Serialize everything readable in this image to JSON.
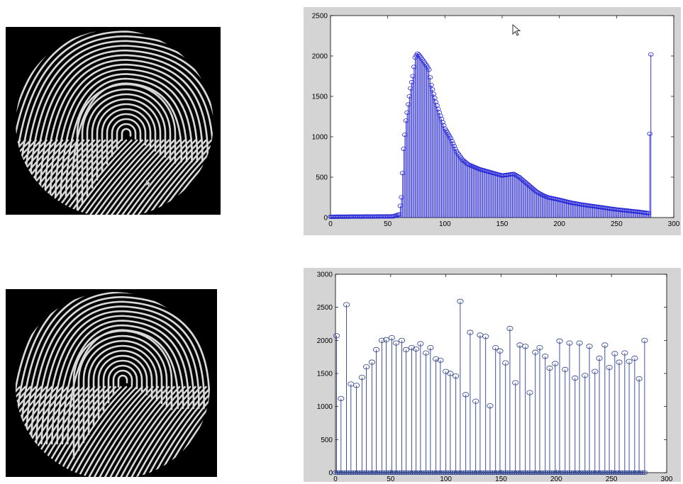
{
  "chart_data": [
    {
      "type": "stem",
      "title": "",
      "xlabel": "",
      "ylabel": "",
      "xlim": [
        0,
        300
      ],
      "ylim": [
        0,
        2500
      ],
      "xticks": [
        0,
        50,
        100,
        150,
        200,
        250,
        300
      ],
      "yticks": [
        0,
        500,
        1000,
        1500,
        2000,
        2500
      ],
      "grid": false,
      "color": "#2424d8",
      "keypoints": [
        [
          0,
          10
        ],
        [
          55,
          15
        ],
        [
          60,
          40
        ],
        [
          62,
          250
        ],
        [
          64,
          850
        ],
        [
          66,
          1200
        ],
        [
          68,
          1400
        ],
        [
          70,
          1600
        ],
        [
          72,
          1750
        ],
        [
          74,
          1980
        ],
        [
          76,
          2030
        ],
        [
          78,
          2000
        ],
        [
          80,
          1960
        ],
        [
          82,
          1920
        ],
        [
          84,
          1880
        ],
        [
          86,
          1830
        ],
        [
          88,
          1640
        ],
        [
          90,
          1530
        ],
        [
          92,
          1430
        ],
        [
          95,
          1300
        ],
        [
          100,
          1100
        ],
        [
          105,
          980
        ],
        [
          110,
          820
        ],
        [
          115,
          720
        ],
        [
          120,
          660
        ],
        [
          125,
          630
        ],
        [
          130,
          600
        ],
        [
          135,
          580
        ],
        [
          140,
          560
        ],
        [
          145,
          540
        ],
        [
          150,
          520
        ],
        [
          155,
          530
        ],
        [
          160,
          540
        ],
        [
          165,
          500
        ],
        [
          170,
          440
        ],
        [
          175,
          380
        ],
        [
          180,
          320
        ],
        [
          185,
          280
        ],
        [
          190,
          250
        ],
        [
          200,
          220
        ],
        [
          210,
          185
        ],
        [
          220,
          160
        ],
        [
          230,
          140
        ],
        [
          240,
          120
        ],
        [
          250,
          100
        ],
        [
          260,
          85
        ],
        [
          270,
          70
        ],
        [
          278,
          55
        ],
        [
          280,
          2020
        ]
      ]
    },
    {
      "type": "stem",
      "title": "",
      "xlabel": "",
      "ylabel": "",
      "xlim": [
        0,
        300
      ],
      "ylim": [
        0,
        3000
      ],
      "xticks": [
        0,
        50,
        100,
        150,
        200,
        250,
        300
      ],
      "yticks": [
        0,
        500,
        1000,
        1500,
        2000,
        2500,
        3000
      ],
      "grid": false,
      "color": "#2a3e8c",
      "x": [
        1,
        5,
        10,
        14,
        19,
        24,
        28,
        33,
        37,
        42,
        46,
        51,
        55,
        60,
        64,
        69,
        73,
        77,
        82,
        86,
        91,
        95,
        100,
        104,
        109,
        113,
        118,
        122,
        127,
        131,
        136,
        140,
        145,
        149,
        154,
        158,
        163,
        167,
        172,
        176,
        181,
        185,
        190,
        194,
        199,
        203,
        208,
        212,
        217,
        221,
        226,
        230,
        235,
        239,
        244,
        248,
        253,
        257,
        262,
        266,
        271,
        275,
        280
      ],
      "values": [
        2070,
        1120,
        2540,
        1340,
        1320,
        1440,
        1600,
        1670,
        1860,
        2000,
        2010,
        2040,
        1960,
        2000,
        1860,
        1890,
        1870,
        1950,
        1810,
        1890,
        1720,
        1700,
        1530,
        1500,
        1460,
        2590,
        1180,
        2120,
        1080,
        2080,
        2060,
        1010,
        1890,
        1840,
        1660,
        2180,
        1360,
        1930,
        1910,
        1210,
        1820,
        1890,
        1760,
        1580,
        1650,
        1990,
        1560,
        1960,
        1430,
        1960,
        1470,
        1910,
        1530,
        1730,
        1930,
        1590,
        1800,
        1670,
        1810,
        1680,
        1730,
        1420,
        2000
      ],
      "zero_markers_step": 2
    }
  ]
}
